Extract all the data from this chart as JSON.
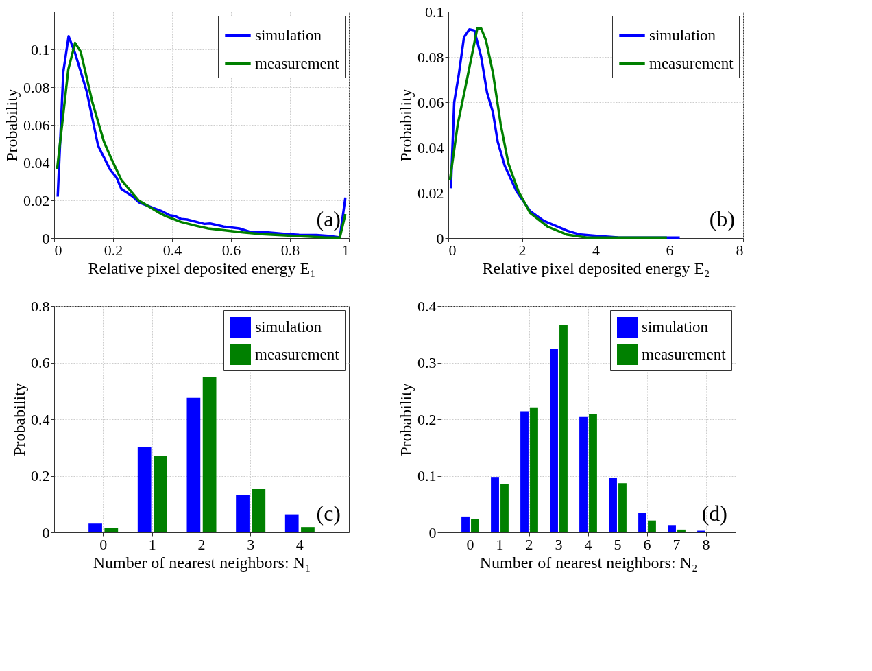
{
  "chart_data": [
    {
      "type": "line",
      "xlabel": "Relative pixel deposited energy  E₁",
      "ylabel": "Probability",
      "xlim": [
        0,
        1
      ],
      "xticks": [
        0,
        0.2,
        0.4,
        0.6,
        0.8,
        1
      ],
      "ylim": [
        0,
        0.12
      ],
      "yticks": [
        0,
        0.02,
        0.04,
        0.06,
        0.08,
        0.1
      ],
      "grid": true,
      "legend": "top right",
      "annotations": [
        "(a)"
      ],
      "series": [
        {
          "name": "simulation",
          "color": "#0000ff",
          "x": [
            0.012,
            0.031,
            0.049,
            0.071,
            0.11,
            0.149,
            0.189,
            0.212,
            0.228,
            0.267,
            0.287,
            0.339,
            0.366,
            0.392,
            0.411,
            0.431,
            0.451,
            0.51,
            0.529,
            0.575,
            0.628,
            0.661,
            0.726,
            0.792,
            0.831,
            0.89,
            0.929,
            0.969,
            0.988
          ],
          "values": [
            0.022,
            0.088,
            0.107,
            0.098,
            0.078,
            0.049,
            0.0365,
            0.032,
            0.026,
            0.022,
            0.019,
            0.0158,
            0.0142,
            0.0121,
            0.0116,
            0.0101,
            0.0098,
            0.0075,
            0.0077,
            0.0061,
            0.0051,
            0.0035,
            0.003,
            0.0021,
            0.0017,
            0.0016,
            0.0012,
            0.0004,
            0.0215
          ]
        },
        {
          "name": "measurement",
          "color": "#008000",
          "x": [
            0.01,
            0.048,
            0.071,
            0.09,
            0.13,
            0.169,
            0.195,
            0.228,
            0.287,
            0.353,
            0.379,
            0.431,
            0.484,
            0.523,
            0.641,
            0.706,
            0.837,
            0.916,
            0.969,
            0.988
          ],
          "values": [
            0.0365,
            0.0894,
            0.1034,
            0.0988,
            0.0718,
            0.051,
            0.0417,
            0.0308,
            0.0199,
            0.0137,
            0.0116,
            0.0085,
            0.0064,
            0.0051,
            0.003,
            0.0021,
            0.001,
            0.0004,
            0.0002,
            0.0127
          ]
        }
      ]
    },
    {
      "type": "line",
      "xlabel": "Relative pixel deposited energy  E₂",
      "ylabel": "Probability",
      "xlim": [
        0,
        8
      ],
      "xticks": [
        0,
        2,
        4,
        6,
        8
      ],
      "ylim": [
        0,
        0.1
      ],
      "yticks": [
        0,
        0.02,
        0.04,
        0.06,
        0.08,
        0.1
      ],
      "grid": true,
      "legend": "top right",
      "annotations": [
        "(b)"
      ],
      "series": [
        {
          "name": "simulation",
          "color": "#0000ff",
          "x": [
            0.069,
            0.159,
            0.281,
            0.424,
            0.573,
            0.706,
            0.891,
            1.05,
            1.21,
            1.34,
            1.53,
            1.85,
            2.22,
            2.59,
            2.91,
            3.23,
            3.54,
            4.07,
            4.6,
            5.24,
            6.28
          ],
          "values": [
            0.022,
            0.06,
            0.072,
            0.0887,
            0.0922,
            0.0917,
            0.08,
            0.0643,
            0.0555,
            0.0425,
            0.032,
            0.0207,
            0.0119,
            0.0076,
            0.0054,
            0.0032,
            0.0017,
            0.0009,
            0.0003,
            0.0002,
            0.0002
          ]
        },
        {
          "name": "measurement",
          "color": "#008000",
          "x": [
            0.042,
            0.255,
            0.52,
            0.785,
            0.891,
            1.02,
            1.21,
            1.42,
            1.63,
            1.9,
            2.22,
            2.7,
            3.23,
            3.76,
            5.93
          ],
          "values": [
            0.0255,
            0.0503,
            0.0712,
            0.0926,
            0.0926,
            0.0874,
            0.073,
            0.0503,
            0.0329,
            0.0207,
            0.0111,
            0.005,
            0.0015,
            0.0002,
            0.0002
          ]
        }
      ]
    },
    {
      "type": "bar",
      "xlabel": "Number of nearest neighbors:  N₁",
      "ylabel": "Probability",
      "categories": [
        "0",
        "1",
        "2",
        "3",
        "4"
      ],
      "ylim": [
        0,
        0.8
      ],
      "yticks": [
        0,
        0.2,
        0.4,
        0.6,
        0.8
      ],
      "grid": true,
      "legend": "top right",
      "annotations": [
        "(c)"
      ],
      "series": [
        {
          "name": "simulation",
          "color": "#0000ff",
          "values": [
            0.031,
            0.303,
            0.476,
            0.132,
            0.064
          ]
        },
        {
          "name": "measurement",
          "color": "#008000",
          "values": [
            0.016,
            0.27,
            0.55,
            0.153,
            0.019
          ]
        }
      ]
    },
    {
      "type": "bar",
      "xlabel": "Number of nearest neighbors:  N₂",
      "ylabel": "Probability",
      "categories": [
        "0",
        "1",
        "2",
        "3",
        "4",
        "5",
        "6",
        "7",
        "8"
      ],
      "ylim": [
        0,
        0.4
      ],
      "yticks": [
        0,
        0.1,
        0.2,
        0.3,
        0.4
      ],
      "grid": true,
      "legend": "top right",
      "annotations": [
        "(d)"
      ],
      "series": [
        {
          "name": "simulation",
          "color": "#0000ff",
          "values": [
            0.028,
            0.098,
            0.214,
            0.325,
            0.204,
            0.097,
            0.034,
            0.013,
            0.003
          ]
        },
        {
          "name": "measurement",
          "color": "#008000",
          "values": [
            0.023,
            0.085,
            0.221,
            0.366,
            0.209,
            0.087,
            0.021,
            0.005,
            0.001
          ]
        }
      ]
    }
  ]
}
